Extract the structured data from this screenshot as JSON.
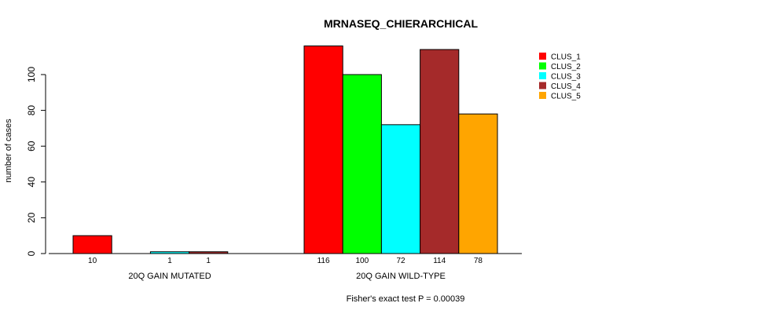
{
  "chart_data": {
    "type": "bar",
    "title": "MRNASEQ_CHIERARCHICAL",
    "ylabel": "number of cases",
    "xlabel": "",
    "ylim": [
      0,
      120
    ],
    "yticks": [
      0,
      20,
      40,
      60,
      80,
      100
    ],
    "groups": [
      {
        "name": "20Q GAIN MUTATED",
        "values": [
          10,
          0,
          1,
          1,
          0
        ],
        "labels": [
          "10",
          "",
          "1",
          "1",
          ""
        ]
      },
      {
        "name": "20Q GAIN WILD-TYPE",
        "values": [
          116,
          100,
          72,
          114,
          78
        ],
        "labels": [
          "116",
          "100",
          "72",
          "114",
          "78"
        ]
      }
    ],
    "series": [
      {
        "name": "CLUS_1",
        "color": "#ff0000"
      },
      {
        "name": "CLUS_2",
        "color": "#00ff00"
      },
      {
        "name": "CLUS_3",
        "color": "#00ffff"
      },
      {
        "name": "CLUS_4",
        "color": "#a52a2a"
      },
      {
        "name": "CLUS_5",
        "color": "#ffa500"
      }
    ],
    "legend_position": "top-right",
    "annotation": "Fisher's exact test P = 0.00039"
  }
}
